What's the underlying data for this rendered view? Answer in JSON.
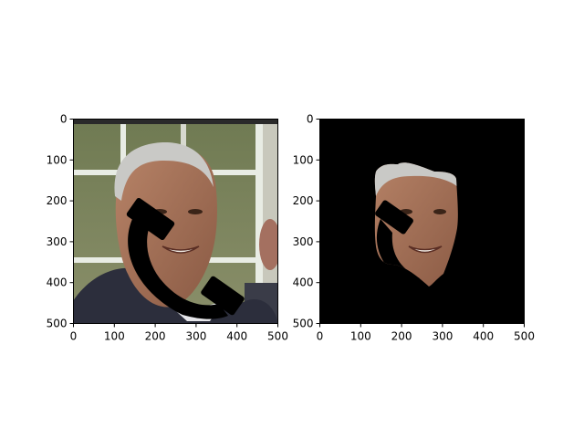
{
  "figure": {
    "background": "#ffffff",
    "panels": [
      "original-image",
      "masked-face"
    ]
  },
  "chart_data": [
    {
      "type": "image",
      "title": "",
      "xlabel": "",
      "ylabel": "",
      "xlim": [
        0,
        500
      ],
      "ylim": [
        500,
        0
      ],
      "xticks": [
        "0",
        "100",
        "200",
        "300",
        "400",
        "500"
      ],
      "yticks": [
        "0",
        "100",
        "200",
        "300",
        "400",
        "500"
      ],
      "content": "photo with black telephone-receiver occluder",
      "colors": {
        "occluder": "#000000",
        "window_frame": "#e8ece4",
        "suit": "#2c2e3c"
      }
    },
    {
      "type": "image",
      "title": "",
      "xlabel": "",
      "ylabel": "",
      "xlim": [
        0,
        500
      ],
      "ylim": [
        500,
        0
      ],
      "xticks": [
        "0",
        "100",
        "200",
        "300",
        "400",
        "500"
      ],
      "yticks": [
        "0",
        "100",
        "200",
        "300",
        "400",
        "500"
      ],
      "content": "face segmentation mask applied to photo on black background",
      "colors": {
        "background": "#000000"
      }
    }
  ]
}
